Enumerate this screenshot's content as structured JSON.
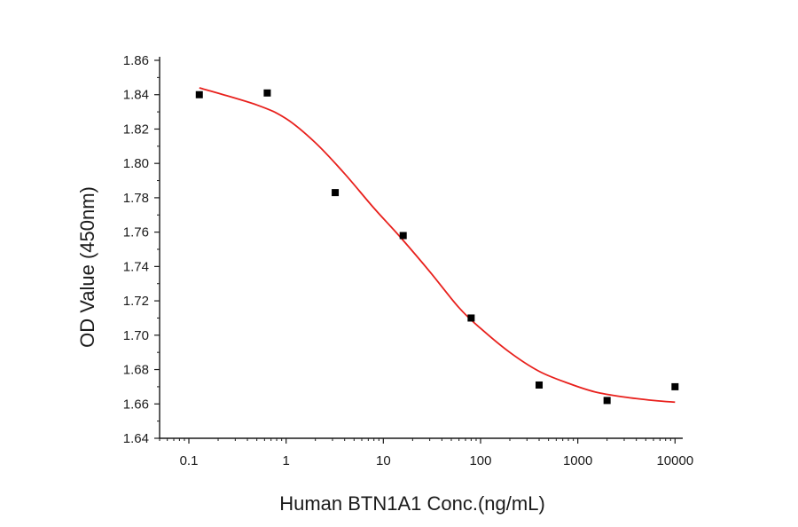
{
  "chart_data": {
    "type": "scatter",
    "title": "",
    "xlabel": "Human BTN1A1 Conc.(ng/mL)",
    "ylabel": "OD Value (450nm)",
    "x_scale": "log",
    "xlim": [
      0.05,
      12000
    ],
    "ylim": [
      1.64,
      1.86
    ],
    "x_ticks": [
      0.1,
      1,
      10,
      100,
      1000,
      10000
    ],
    "x_tick_labels": [
      "0.1",
      "1",
      "10",
      "100",
      "1000",
      "10000"
    ],
    "y_ticks": [
      1.64,
      1.66,
      1.68,
      1.7,
      1.72,
      1.74,
      1.76,
      1.78,
      1.8,
      1.82,
      1.84,
      1.86
    ],
    "y_tick_labels": [
      "1.64",
      "1.66",
      "1.68",
      "1.70",
      "1.72",
      "1.74",
      "1.76",
      "1.78",
      "1.80",
      "1.82",
      "1.84",
      "1.86"
    ],
    "grid": false,
    "series": [
      {
        "kind": "points",
        "marker": "square",
        "color": "#000000",
        "x": [
          0.128,
          0.64,
          3.2,
          16,
          80,
          400,
          2000,
          10000
        ],
        "y": [
          1.84,
          1.841,
          1.783,
          1.758,
          1.71,
          1.671,
          1.662,
          1.67
        ]
      },
      {
        "kind": "fit",
        "color": "#e8201c",
        "x": [
          0.128,
          0.5,
          1,
          2,
          4,
          8,
          15,
          30,
          60,
          100,
          200,
          400,
          800,
          1500,
          3000,
          6000,
          10000
        ],
        "y": [
          1.844,
          1.834,
          1.826,
          1.812,
          1.794,
          1.774,
          1.757,
          1.737,
          1.716,
          1.704,
          1.69,
          1.679,
          1.672,
          1.667,
          1.664,
          1.662,
          1.661
        ]
      }
    ]
  }
}
